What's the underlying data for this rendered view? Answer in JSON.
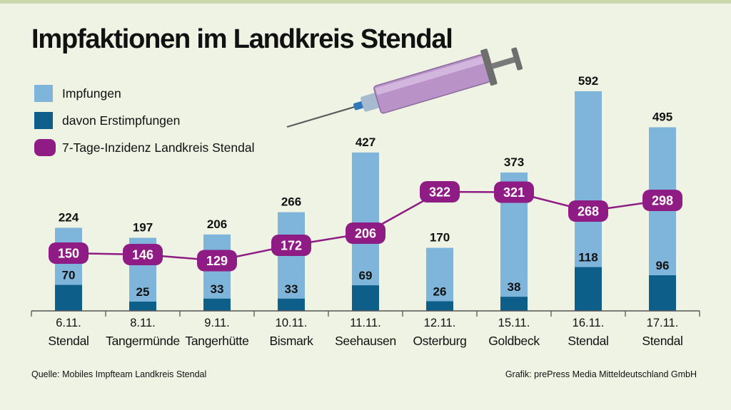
{
  "title": "Impfaktionen im Landkreis Stendal",
  "legend": {
    "impfungen": "Impfungen",
    "erst": "davon Erstimpfungen",
    "inzidenz": "7-Tage-Inzidenz Landkreis Stendal"
  },
  "source": "Quelle: Mobiles Impfteam Landkreis Stendal",
  "credit": "Grafik: prePress Media Mitteldeutschland GmbH",
  "colors": {
    "impfungen": "#7fb5da",
    "erst": "#0d5f8a",
    "inzidenz": "#8f1c84",
    "background": "#eef3e4"
  },
  "chart_data": {
    "type": "bar",
    "title": "Impfaktionen im Landkreis Stendal",
    "categories": [
      {
        "date": "6.11.",
        "place": "Stendal"
      },
      {
        "date": "8.11.",
        "place": "Tangermünde"
      },
      {
        "date": "9.11.",
        "place": "Tangerhütte"
      },
      {
        "date": "10.11.",
        "place": "Bismark"
      },
      {
        "date": "11.11.",
        "place": "Seehausen"
      },
      {
        "date": "12.11.",
        "place": "Osterburg"
      },
      {
        "date": "15.11.",
        "place": "Goldbeck"
      },
      {
        "date": "16.11.",
        "place": "Stendal"
      },
      {
        "date": "17.11.",
        "place": "Stendal"
      }
    ],
    "series": [
      {
        "name": "Impfungen",
        "values": [
          224,
          197,
          206,
          266,
          427,
          170,
          373,
          592,
          495
        ]
      },
      {
        "name": "davon Erstimpfungen",
        "values": [
          70,
          25,
          33,
          33,
          69,
          26,
          38,
          118,
          96
        ]
      },
      {
        "name": "7-Tage-Inzidenz Landkreis Stendal",
        "type": "line",
        "values": [
          150,
          146,
          129,
          172,
          206,
          322,
          321,
          268,
          298
        ]
      }
    ],
    "xlabel": "",
    "ylabel": "",
    "ylim": [
      0,
      592
    ],
    "grid": false,
    "legend": "top-left"
  }
}
